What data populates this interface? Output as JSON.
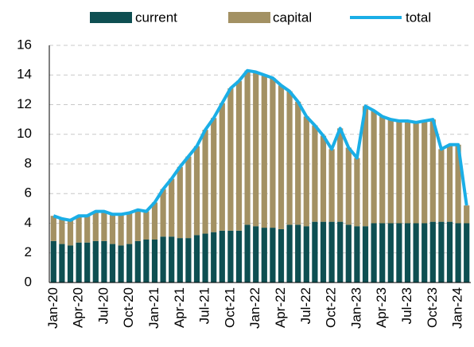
{
  "chart_data": {
    "type": "stacked_bar_line",
    "categories": [
      "Jan-20",
      null,
      null,
      "Apr-20",
      null,
      null,
      "Jul-20",
      null,
      null,
      "Oct-20",
      null,
      null,
      "Jan-21",
      null,
      null,
      "Apr-21",
      null,
      null,
      "Jul-21",
      null,
      null,
      "Oct-21",
      null,
      null,
      "Jan-22",
      null,
      null,
      "Apr-22",
      null,
      null,
      "Jul-22",
      null,
      null,
      "Oct-22",
      null,
      null,
      "Jan-23",
      null,
      null,
      "Apr-23",
      null,
      null,
      "Jul-23",
      null,
      null,
      "Oct-23",
      null,
      null,
      "Jan-24",
      null
    ],
    "series": [
      {
        "name": "current",
        "color": "#0e4f52",
        "kind": "bar",
        "values": [
          2.8,
          2.6,
          2.5,
          2.7,
          2.7,
          2.8,
          2.8,
          2.6,
          2.5,
          2.6,
          2.8,
          2.9,
          2.9,
          3.1,
          3.1,
          3.0,
          3.0,
          3.2,
          3.3,
          3.4,
          3.5,
          3.5,
          3.5,
          3.9,
          3.8,
          3.7,
          3.7,
          3.6,
          3.9,
          3.9,
          3.8,
          4.1,
          4.1,
          4.1,
          4.1,
          3.9,
          3.8,
          3.8,
          4.0,
          4.0,
          4.0,
          4.0,
          4.0,
          4.0,
          4.0,
          4.1,
          4.1,
          4.1,
          4.0,
          4.0
        ]
      },
      {
        "name": "capital",
        "color": "#a39163",
        "kind": "bar",
        "values": [
          1.7,
          1.7,
          1.7,
          1.8,
          1.8,
          2.0,
          2.0,
          2.0,
          2.1,
          2.1,
          2.1,
          1.9,
          2.5,
          3.2,
          3.9,
          4.8,
          5.5,
          6.0,
          7.0,
          7.7,
          8.6,
          9.6,
          10.1,
          10.4,
          10.4,
          10.3,
          10.1,
          9.7,
          9.0,
          8.3,
          7.4,
          6.5,
          5.8,
          4.9,
          6.3,
          5.2,
          4.6,
          8.1,
          7.6,
          7.2,
          7.0,
          6.9,
          6.9,
          6.8,
          6.9,
          6.9,
          4.9,
          5.2,
          5.3,
          1.2
        ]
      },
      {
        "name": "total",
        "color": "#1aaee6",
        "kind": "line",
        "values": [
          4.5,
          4.3,
          4.2,
          4.5,
          4.5,
          4.8,
          4.8,
          4.6,
          4.6,
          4.7,
          4.9,
          4.8,
          5.4,
          6.3,
          7.0,
          7.8,
          8.5,
          9.2,
          10.3,
          11.1,
          12.1,
          13.1,
          13.6,
          14.3,
          14.2,
          14.0,
          13.8,
          13.3,
          12.9,
          12.2,
          11.2,
          10.6,
          9.9,
          9.0,
          10.4,
          9.1,
          8.4,
          11.9,
          11.6,
          11.2,
          11.0,
          10.9,
          10.9,
          10.8,
          10.9,
          11.0,
          9.0,
          9.3,
          9.3,
          5.2
        ]
      }
    ],
    "ylim": [
      0,
      16
    ],
    "yticks": [
      0,
      2,
      4,
      6,
      8,
      10,
      12,
      14,
      16
    ],
    "grid": true,
    "legend": "top"
  }
}
